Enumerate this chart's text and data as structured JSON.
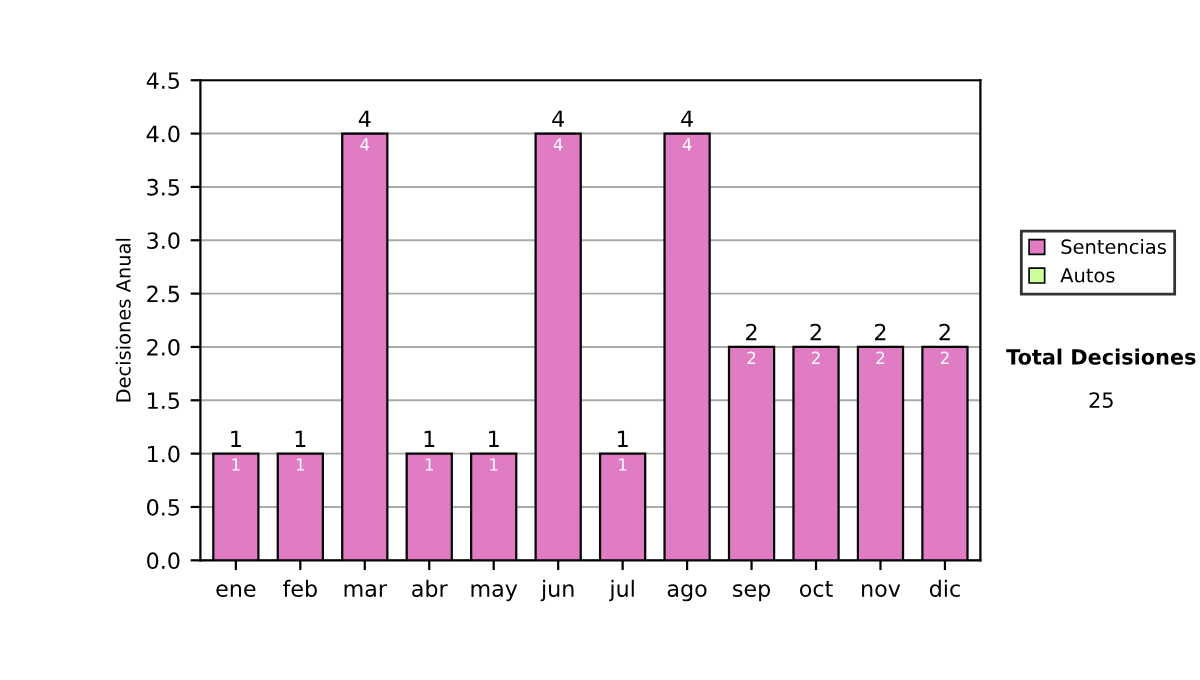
{
  "chart_data": {
    "type": "bar",
    "ylabel": "Decisiones Anual",
    "categories": [
      "ene",
      "feb",
      "mar",
      "abr",
      "may",
      "jun",
      "jul",
      "ago",
      "sep",
      "oct",
      "nov",
      "dic"
    ],
    "series": [
      {
        "name": "Sentencias",
        "color": "#e07cc4",
        "values": [
          1,
          1,
          4,
          1,
          1,
          4,
          1,
          4,
          2,
          2,
          2,
          2
        ]
      },
      {
        "name": "Autos",
        "color": "#ccff99",
        "values": [
          null,
          null,
          null,
          null,
          null,
          null,
          null,
          null,
          null,
          null,
          null,
          null
        ]
      }
    ],
    "stacked": true,
    "data_labels": true,
    "totals": [
      "1",
      "1",
      "4",
      "1",
      "1",
      "4",
      "1",
      "4",
      "2",
      "2",
      "2",
      "2"
    ],
    "ylim": [
      0,
      4.5
    ],
    "yticks": [
      {
        "value": 0,
        "label": "0.0"
      },
      {
        "value": 0.5,
        "label": "0.5"
      },
      {
        "value": 1,
        "label": "1.0"
      },
      {
        "value": 1.5,
        "label": "1.5"
      },
      {
        "value": 2,
        "label": "2.0"
      },
      {
        "value": 2.5,
        "label": "2.5"
      },
      {
        "value": 3,
        "label": "3.0"
      },
      {
        "value": 3.5,
        "label": "3.5"
      },
      {
        "value": 4,
        "label": "4.0"
      },
      {
        "value": 4.5,
        "label": "4.5"
      }
    ],
    "grid": "y",
    "legend": "right",
    "annotations": [
      "Total Decisiones",
      "25"
    ]
  }
}
